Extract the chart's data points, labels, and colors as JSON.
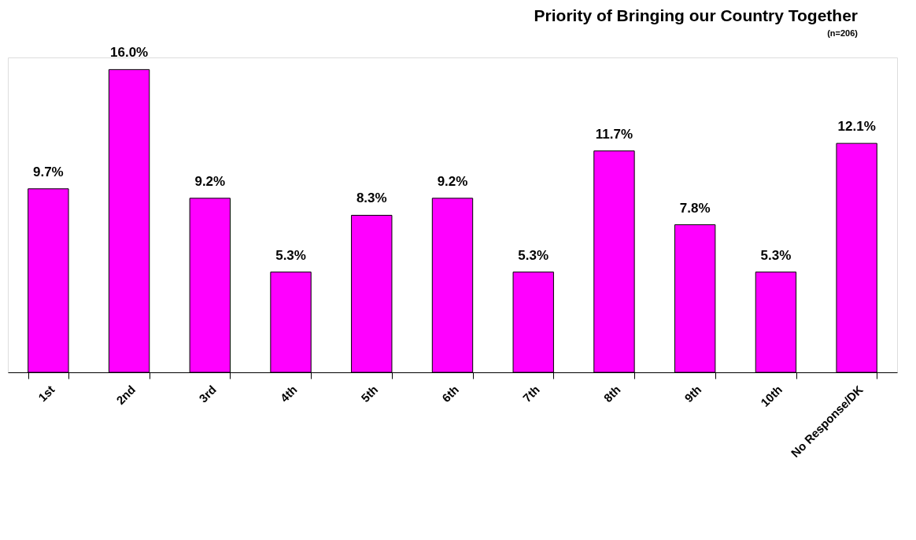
{
  "chart_data": {
    "type": "bar",
    "title": "Priority of Bringing our Country Together",
    "subtitle": "(n=206)",
    "categories": [
      "1st",
      "2nd",
      "3rd",
      "4th",
      "5th",
      "6th",
      "7th",
      "8th",
      "9th",
      "10th",
      "No Response/DK"
    ],
    "values": [
      9.7,
      16.0,
      9.2,
      5.3,
      8.3,
      9.2,
      5.3,
      11.7,
      7.8,
      5.3,
      12.1
    ],
    "value_labels": [
      "9.7%",
      "16.0%",
      "9.2%",
      "5.3%",
      "8.3%",
      "9.2%",
      "5.3%",
      "11.7%",
      "7.8%",
      "5.3%",
      "12.1%"
    ],
    "color": "#ff00ff",
    "grid": false
  }
}
